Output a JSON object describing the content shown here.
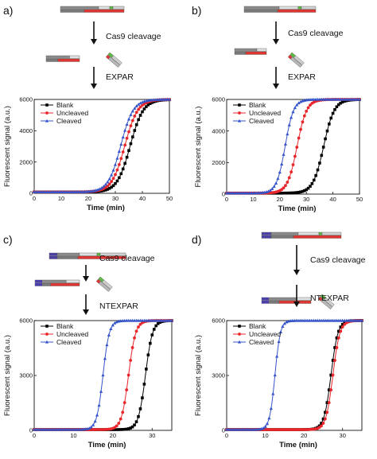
{
  "chart_data": [
    {
      "type": "line",
      "panel_label": "a)",
      "steps": [
        "Cas9 cleavage",
        "EXPAR"
      ],
      "xlabel": "Time (min)",
      "ylabel": "Fluorescent signal (a.u.)",
      "xlim": [
        0,
        50
      ],
      "ylim": [
        0,
        6000
      ],
      "xticks": [
        0,
        10,
        20,
        30,
        40,
        50
      ],
      "yticks": [
        0,
        2000,
        4000,
        6000
      ],
      "legend": "top-left",
      "series": [
        {
          "name": "Blank",
          "color": "#000000",
          "marker": "square",
          "midpoint": 35.5,
          "width": 2.4
        },
        {
          "name": "Uncleaved",
          "color": "#e8262b",
          "marker": "circle",
          "midpoint": 33.5,
          "width": 2.4
        },
        {
          "name": "Cleaved",
          "color": "#3654c9",
          "marker": "triangle",
          "midpoint": 32.0,
          "width": 2.3
        }
      ],
      "baseline": 80,
      "plateau": 6000
    },
    {
      "type": "line",
      "panel_label": "b)",
      "steps": [
        "Cas9 cleavage",
        "EXPAR"
      ],
      "xlabel": "Time (min)",
      "ylabel": "Fluorescent signal (a.u.)",
      "xlim": [
        0,
        50
      ],
      "ylim": [
        0,
        6000
      ],
      "xticks": [
        0,
        10,
        20,
        30,
        40,
        50
      ],
      "yticks": [
        0,
        2000,
        4000,
        6000
      ],
      "legend": "top-left",
      "series": [
        {
          "name": "Blank",
          "color": "#000000",
          "marker": "square",
          "midpoint": 36.5,
          "width": 2.0
        },
        {
          "name": "Uncleaved",
          "color": "#e8262b",
          "marker": "circle",
          "midpoint": 26.5,
          "width": 1.8
        },
        {
          "name": "Cleaved",
          "color": "#3654c9",
          "marker": "triangle",
          "midpoint": 22.0,
          "width": 1.6
        }
      ],
      "baseline": 60,
      "plateau": 6000
    },
    {
      "type": "line",
      "panel_label": "c)",
      "steps": [
        "Cas9 cleavage",
        "NTEXPAR"
      ],
      "xlabel": "Time (min)",
      "ylabel": "Fluorescent signal (a.u.)",
      "xlim": [
        0,
        35
      ],
      "ylim": [
        0,
        6000
      ],
      "xticks": [
        0,
        10,
        20,
        30
      ],
      "yticks": [
        0,
        3000,
        6000
      ],
      "legend": "top-left",
      "series": [
        {
          "name": "Blank",
          "color": "#000000",
          "marker": "square",
          "midpoint": 28.3,
          "width": 0.9
        },
        {
          "name": "Uncleaved",
          "color": "#e8262b",
          "marker": "circle",
          "midpoint": 24.0,
          "width": 0.9
        },
        {
          "name": "Cleaved",
          "color": "#3654c9",
          "marker": "triangle",
          "midpoint": 17.5,
          "width": 0.8
        }
      ],
      "baseline": 40,
      "plateau": 6000
    },
    {
      "type": "line",
      "panel_label": "d)",
      "steps": [
        "Cas9 cleavage",
        "NTEXPAR"
      ],
      "xlabel": "Time (min)",
      "ylabel": "Fluorescent signal (a.u.)",
      "xlim": [
        0,
        35
      ],
      "ylim": [
        0,
        6000
      ],
      "xticks": [
        0,
        10,
        20,
        30
      ],
      "yticks": [
        0,
        3000,
        6000
      ],
      "legend": "top-left",
      "series": [
        {
          "name": "Blank",
          "color": "#000000",
          "marker": "square",
          "midpoint": 27.0,
          "width": 0.9
        },
        {
          "name": "Uncleaved",
          "color": "#e8262b",
          "marker": "circle",
          "midpoint": 27.5,
          "width": 0.9
        },
        {
          "name": "Cleaved",
          "color": "#3654c9",
          "marker": "triangle",
          "midpoint": 12.5,
          "width": 0.7
        }
      ],
      "baseline": 40,
      "plateau": 6000
    }
  ]
}
